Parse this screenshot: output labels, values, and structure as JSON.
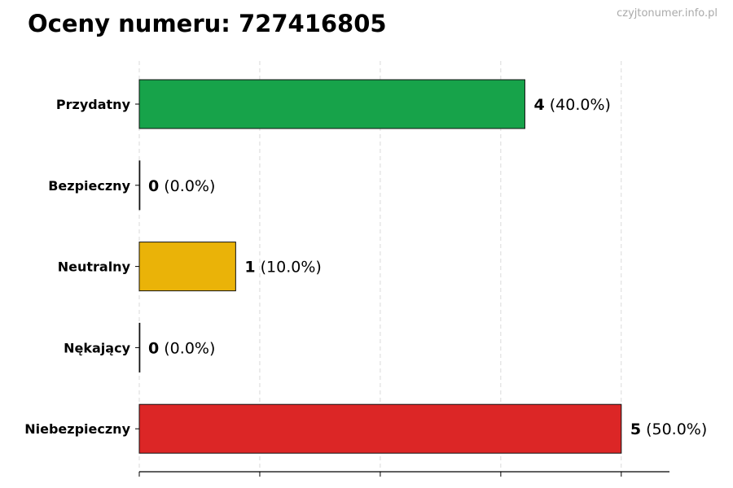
{
  "title": "Oceny numeru: 727416805",
  "watermark": "czyjtonumer.info.pl",
  "chart_data": {
    "type": "bar",
    "orientation": "horizontal",
    "title": "Oceny numeru: 727416805",
    "categories": [
      "Przydatny",
      "Bezpieczny",
      "Neutralny",
      "Nękający",
      "Niebezpieczny"
    ],
    "values": [
      4,
      0,
      1,
      0,
      5
    ],
    "percent_labels": [
      "(40.0%)",
      "(0.0%)",
      "(10.0%)",
      "(0.0%)",
      "(50.0%)"
    ],
    "colors": [
      "#17a34a",
      "#6b7280",
      "#eab308",
      "#6b7280",
      "#dc2626"
    ],
    "xlim": [
      0,
      5.5
    ],
    "xticks": [
      0,
      1.25,
      2.5,
      3.75,
      5
    ],
    "xtick_labels_shown": false,
    "grid": "x dashed",
    "xlabel": "",
    "ylabel": ""
  }
}
